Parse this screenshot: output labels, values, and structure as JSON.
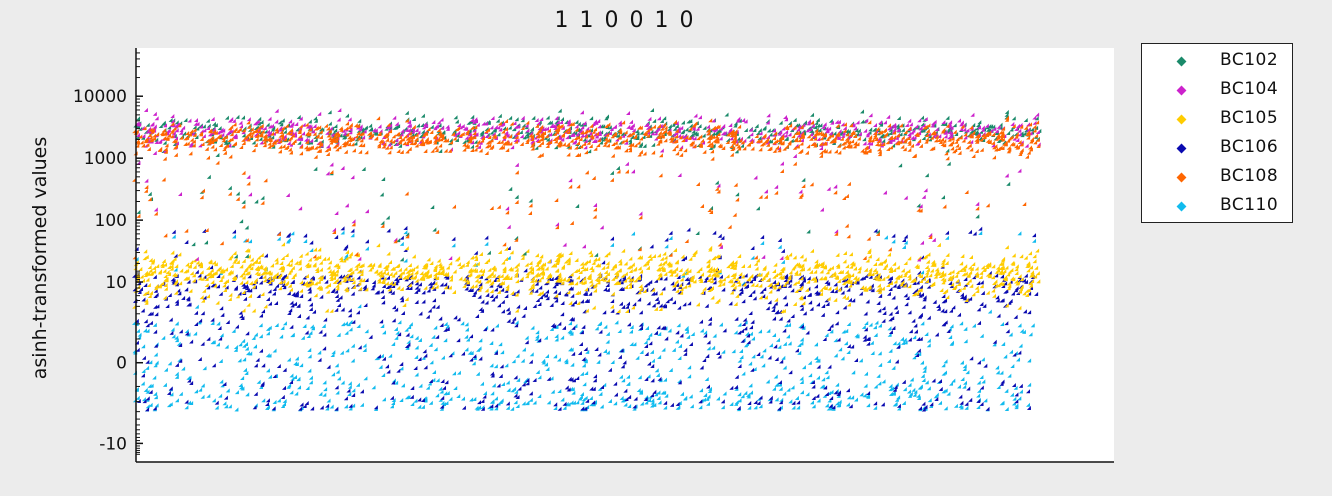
{
  "chart_data": {
    "type": "scatter",
    "title": "1 1 0 0 1 0",
    "xlabel": "",
    "ylabel": "asinh-transformed values",
    "y_scale": "asinh",
    "y_ticks": [
      -10,
      0,
      10,
      100,
      1000,
      10000
    ],
    "y_tick_labels": [
      "-10",
      "0",
      "10",
      "100",
      "1000",
      "10000"
    ],
    "ylim": [
      -20,
      60000
    ],
    "grid": false,
    "legend_position": "outside-right",
    "series": [
      {
        "name": "BC102",
        "color": "#1a8a6a",
        "typical_range": [
          800,
          8000
        ]
      },
      {
        "name": "BC104",
        "color": "#cc22cc",
        "typical_range": [
          800,
          8000
        ]
      },
      {
        "name": "BC105",
        "color": "#ffcc00",
        "typical_range": [
          3,
          60
        ]
      },
      {
        "name": "BC106",
        "color": "#0a0ab0",
        "typical_range": [
          -3,
          12
        ]
      },
      {
        "name": "BC108",
        "color": "#ff6600",
        "typical_range": [
          600,
          6000
        ]
      },
      {
        "name": "BC110",
        "color": "#11bbee",
        "typical_range": [
          -3,
          2
        ]
      }
    ]
  }
}
